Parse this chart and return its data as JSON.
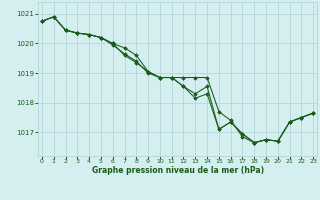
{
  "line1_x": [
    0,
    1,
    2,
    3,
    4,
    5,
    6,
    7,
    8,
    9,
    10,
    11,
    12,
    13,
    14,
    15,
    16,
    17,
    18,
    19,
    20,
    21,
    22,
    23
  ],
  "line1_y": [
    1020.75,
    1020.9,
    1020.45,
    1020.35,
    1020.3,
    1020.2,
    1020.0,
    1019.85,
    1019.6,
    1019.05,
    1018.85,
    1018.85,
    1018.85,
    1018.85,
    1018.85,
    1017.7,
    1017.4,
    1016.85,
    1016.65,
    1016.75,
    1016.7,
    1017.35,
    1017.5,
    1017.65
  ],
  "line2_x": [
    0,
    1,
    2,
    3,
    4,
    5,
    6,
    7,
    8,
    9,
    10,
    11,
    12,
    13,
    14,
    15,
    16,
    17,
    18,
    19,
    20,
    21,
    22,
    23
  ],
  "line2_y": [
    1020.75,
    1020.9,
    1020.45,
    1020.35,
    1020.3,
    1020.2,
    1020.0,
    1019.6,
    1019.35,
    1019.05,
    1018.85,
    1018.85,
    1018.55,
    1018.3,
    1018.55,
    1017.1,
    1017.35,
    1016.95,
    1016.65,
    1016.75,
    1016.7,
    1017.35,
    1017.5,
    1017.65
  ],
  "line3_x": [
    0,
    1,
    2,
    3,
    4,
    5,
    6,
    7,
    8,
    9,
    10,
    11,
    12,
    13,
    14,
    15,
    16,
    17,
    18,
    19,
    20,
    21,
    22,
    23
  ],
  "line3_y": [
    1020.75,
    1020.9,
    1020.45,
    1020.35,
    1020.3,
    1020.2,
    1019.95,
    1019.65,
    1019.4,
    1019.0,
    1018.85,
    1018.85,
    1018.55,
    1018.15,
    1018.3,
    1017.1,
    1017.35,
    1016.95,
    1016.65,
    1016.75,
    1016.7,
    1017.35,
    1017.5,
    1017.65
  ],
  "background_color": "#d5eef0",
  "grid_color": "#b8d8dc",
  "line_color": "#1a5c1a",
  "marker_color": "#1a5c1a",
  "xlabel": "Graphe pression niveau de la mer (hPa)",
  "xticks": [
    0,
    1,
    2,
    3,
    4,
    5,
    6,
    7,
    8,
    9,
    10,
    11,
    12,
    13,
    14,
    15,
    16,
    17,
    18,
    19,
    20,
    21,
    22,
    23
  ],
  "yticks": [
    1017,
    1018,
    1019,
    1020,
    1021
  ],
  "ylim": [
    1016.2,
    1021.4
  ],
  "xlim": [
    -0.3,
    23.3
  ]
}
